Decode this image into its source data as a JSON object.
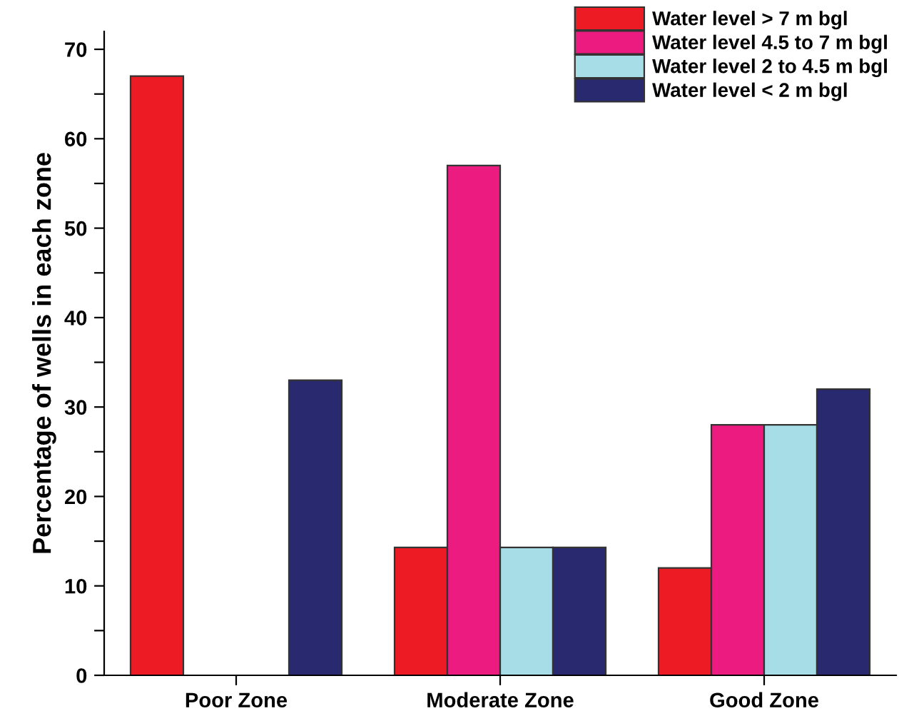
{
  "chart_data": {
    "type": "bar",
    "ylabel": "Percentage of wells in each zone",
    "categories": [
      "Poor Zone",
      "Moderate Zone",
      "Good Zone"
    ],
    "series": [
      {
        "name": "Water level > 7 m bgl",
        "color": "#ed1c24",
        "values": [
          67,
          14.3,
          12
        ]
      },
      {
        "name": "Water level 4.5 to 7 m bgl",
        "color": "#ec1b7f",
        "values": [
          0,
          57,
          28
        ]
      },
      {
        "name": "Water level 2 to 4.5 m bgl",
        "color": "#a6dde6",
        "values": [
          0,
          14.3,
          28
        ]
      },
      {
        "name": "Water level < 2 m bgl",
        "color": "#29296f",
        "values": [
          33,
          14.3,
          32
        ]
      }
    ],
    "ylim": [
      0,
      72
    ],
    "yticks": [
      0,
      {
        "value": 5,
        "label": null
      },
      10,
      {
        "value": 15,
        "label": null
      },
      20,
      {
        "value": 25,
        "label": null
      },
      30,
      {
        "value": 35,
        "label": null
      },
      40,
      {
        "value": 45,
        "label": null
      },
      50,
      {
        "value": 55,
        "label": null
      },
      60,
      {
        "value": 65,
        "label": null
      },
      70
    ],
    "grid": false,
    "legend": "top right"
  }
}
